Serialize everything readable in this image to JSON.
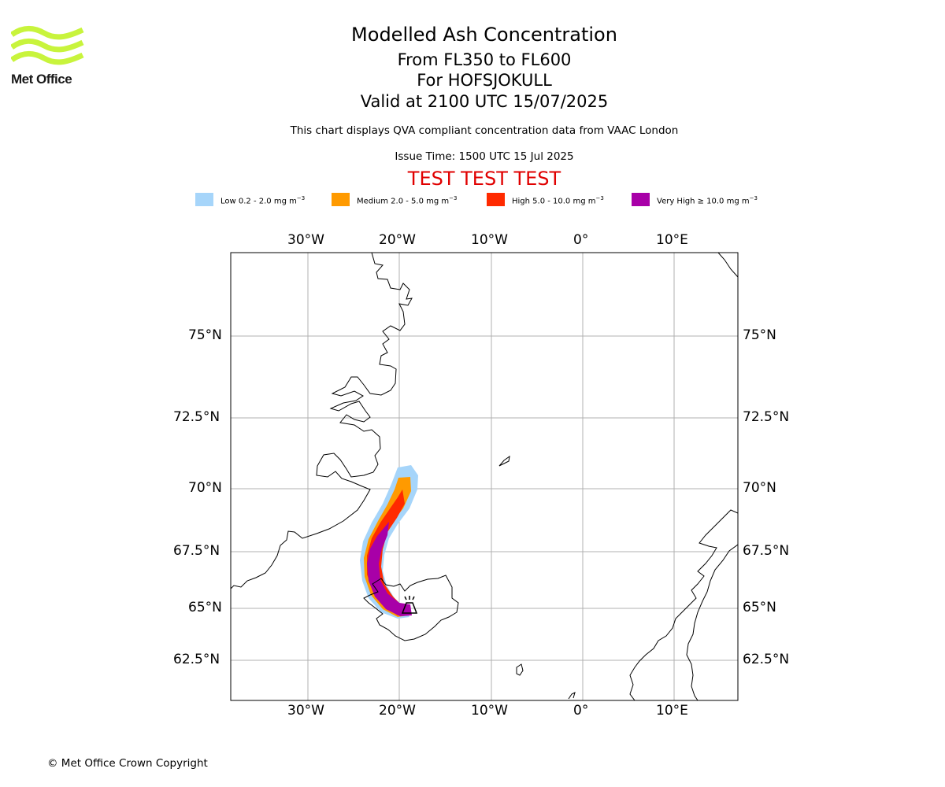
{
  "logo": {
    "text": "Met Office",
    "color": "#c8f43c"
  },
  "header": {
    "title": "Modelled Ash Concentration",
    "levels": "From FL350 to FL600",
    "volcano": "For HOFSJOKULL",
    "valid": "Valid at 2100 UTC 15/07/2025",
    "note": "This chart displays QVA compliant concentration data from VAAC London",
    "issue": "Issue Time: 1500 UTC 15 Jul 2025",
    "test_banner": "TEST TEST TEST"
  },
  "legend": [
    {
      "label": "Low 0.2 - 2.0 mg m",
      "exp": "−3",
      "color": "#a6d5fa"
    },
    {
      "label": "Medium 2.0 - 5.0 mg m",
      "exp": "−3",
      "color": "#ff9a00"
    },
    {
      "label": "High 5.0 - 10.0 mg m",
      "exp": "−3",
      "color": "#ff2a00"
    },
    {
      "label": "Very High  ≥  10.0 mg m",
      "exp": "−3",
      "color": "#a800a8"
    }
  ],
  "map": {
    "lon_ticks": [
      "30°W",
      "20°W",
      "10°W",
      "0°",
      "10°E"
    ],
    "lat_ticks": [
      "75°N",
      "72.5°N",
      "70°N",
      "67.5°N",
      "65°N",
      "62.5°N"
    ],
    "gridline_color": "#b0b0b0",
    "coastline_color": "#000000",
    "volcano_marker": "volcano-symbol"
  },
  "footer": {
    "copyright": "© Met Office Crown Copyright"
  }
}
